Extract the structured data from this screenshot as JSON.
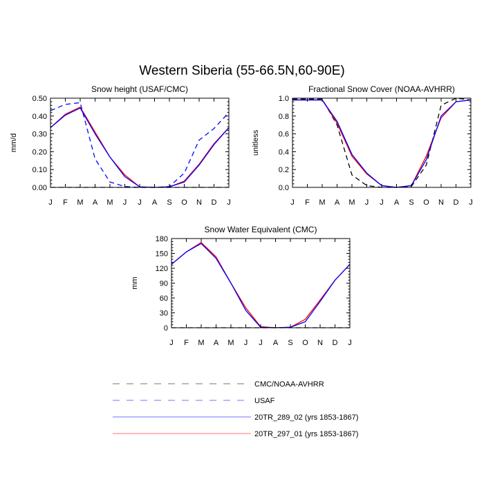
{
  "figure": {
    "title": "Western Siberia (55-66.5N,60-90E)"
  },
  "legend": {
    "entries": [
      {
        "label": "CMC/NOAA-AVHRR",
        "color": "#000000",
        "dash": "dashed"
      },
      {
        "label": "USAF",
        "color": "#0000ff",
        "dash": "dashed"
      },
      {
        "label": "20TR_289_02 (yrs 1853-1867)",
        "color": "#0000ff",
        "dash": "solid"
      },
      {
        "label": "20TR_297_01 (yrs 1853-1867)",
        "color": "#ff0000",
        "dash": "solid"
      }
    ]
  },
  "chart_data": [
    {
      "type": "line",
      "title": "Snow height (USAF/CMC)",
      "xlabel": "",
      "ylabel": "mm/d",
      "categories": [
        "J",
        "F",
        "M",
        "A",
        "M",
        "J",
        "J",
        "A",
        "S",
        "O",
        "N",
        "D",
        "J"
      ],
      "ylim": [
        0,
        0.5
      ],
      "yticks": [
        0.0,
        0.1,
        0.2,
        0.3,
        0.4,
        0.5
      ],
      "ytick_labels": [
        "0.00",
        "0.10",
        "0.20",
        "0.30",
        "0.40",
        "0.50"
      ],
      "series": [
        {
          "name": "CMC/NOAA-AVHRR",
          "color": "#000000",
          "dash": "dashed",
          "values": [
            0,
            0,
            0,
            0,
            0,
            0,
            0,
            0,
            0,
            0,
            0,
            0,
            0
          ]
        },
        {
          "name": "USAF",
          "color": "#0000ff",
          "dash": "dashed",
          "values": [
            0.43,
            0.465,
            0.475,
            0.16,
            0.03,
            0.005,
            0.0,
            0.0,
            0.005,
            0.08,
            0.265,
            0.33,
            0.42
          ]
        },
        {
          "name": "20TR_297_01 (yrs 1853-1867)",
          "color": "#ff0000",
          "dash": "solid",
          "values": [
            0.335,
            0.41,
            0.45,
            0.31,
            0.17,
            0.07,
            0.003,
            0.0,
            0.003,
            0.035,
            0.13,
            0.245,
            0.335
          ]
        },
        {
          "name": "20TR_289_02 (yrs 1853-1867)",
          "color": "#0000ff",
          "dash": "solid",
          "values": [
            0.335,
            0.405,
            0.445,
            0.3,
            0.17,
            0.06,
            0.003,
            0.0,
            0.003,
            0.03,
            0.125,
            0.24,
            0.335
          ]
        }
      ]
    },
    {
      "type": "line",
      "title": "Fractional Snow Cover (NOAA-AVHRR)",
      "xlabel": "",
      "ylabel": "unitless",
      "categories": [
        "J",
        "F",
        "M",
        "A",
        "M",
        "J",
        "J",
        "A",
        "S",
        "O",
        "N",
        "D",
        "J"
      ],
      "ylim": [
        0,
        1.0
      ],
      "yticks": [
        0.0,
        0.2,
        0.4,
        0.6,
        0.8,
        1.0
      ],
      "ytick_labels": [
        "0.0",
        "0.2",
        "0.4",
        "0.6",
        "0.8",
        "1.0"
      ],
      "series": [
        {
          "name": "CMC/NOAA-AVHRR",
          "color": "#000000",
          "dash": "dashed",
          "values": [
            0.99,
            0.99,
            0.99,
            0.7,
            0.14,
            0.02,
            0.0,
            0.0,
            0.01,
            0.25,
            0.92,
            1.0,
            0.98
          ]
        },
        {
          "name": "20TR_297_01 (yrs 1853-1867)",
          "color": "#ff0000",
          "dash": "solid",
          "values": [
            0.98,
            0.98,
            0.98,
            0.72,
            0.35,
            0.15,
            0.02,
            0.0,
            0.02,
            0.35,
            0.78,
            0.96,
            0.98
          ]
        },
        {
          "name": "20TR_289_02 (yrs 1853-1867)",
          "color": "#0000ff",
          "dash": "solid",
          "values": [
            0.98,
            0.98,
            0.98,
            0.74,
            0.37,
            0.16,
            0.02,
            0.0,
            0.02,
            0.31,
            0.8,
            0.96,
            0.98
          ]
        }
      ]
    },
    {
      "type": "line",
      "title": "Snow Water Equivalent (CMC)",
      "xlabel": "",
      "ylabel": "mm",
      "categories": [
        "J",
        "F",
        "M",
        "A",
        "M",
        "J",
        "J",
        "A",
        "S",
        "O",
        "N",
        "D",
        "J"
      ],
      "ylim": [
        0,
        180
      ],
      "yticks": [
        0,
        30,
        60,
        90,
        120,
        150,
        180
      ],
      "ytick_labels": [
        "0",
        "30",
        "60",
        "90",
        "120",
        "150",
        "180"
      ],
      "series": [
        {
          "name": "CMC/NOAA-AVHRR",
          "color": "#000000",
          "dash": "dashed",
          "values": [
            0,
            0,
            0,
            0,
            0,
            0,
            0,
            0,
            0,
            0,
            0,
            0,
            0
          ]
        },
        {
          "name": "20TR_297_01 (yrs 1853-1867)",
          "color": "#ff0000",
          "dash": "solid",
          "values": [
            128,
            153,
            172,
            143,
            90,
            40,
            2,
            0,
            1,
            17,
            56,
            96,
            128
          ]
        },
        {
          "name": "20TR_289_02 (yrs 1853-1867)",
          "color": "#0000ff",
          "dash": "solid",
          "values": [
            128,
            153,
            170,
            140,
            90,
            35,
            1,
            0,
            1,
            12,
            53,
            96,
            128
          ]
        }
      ]
    }
  ]
}
